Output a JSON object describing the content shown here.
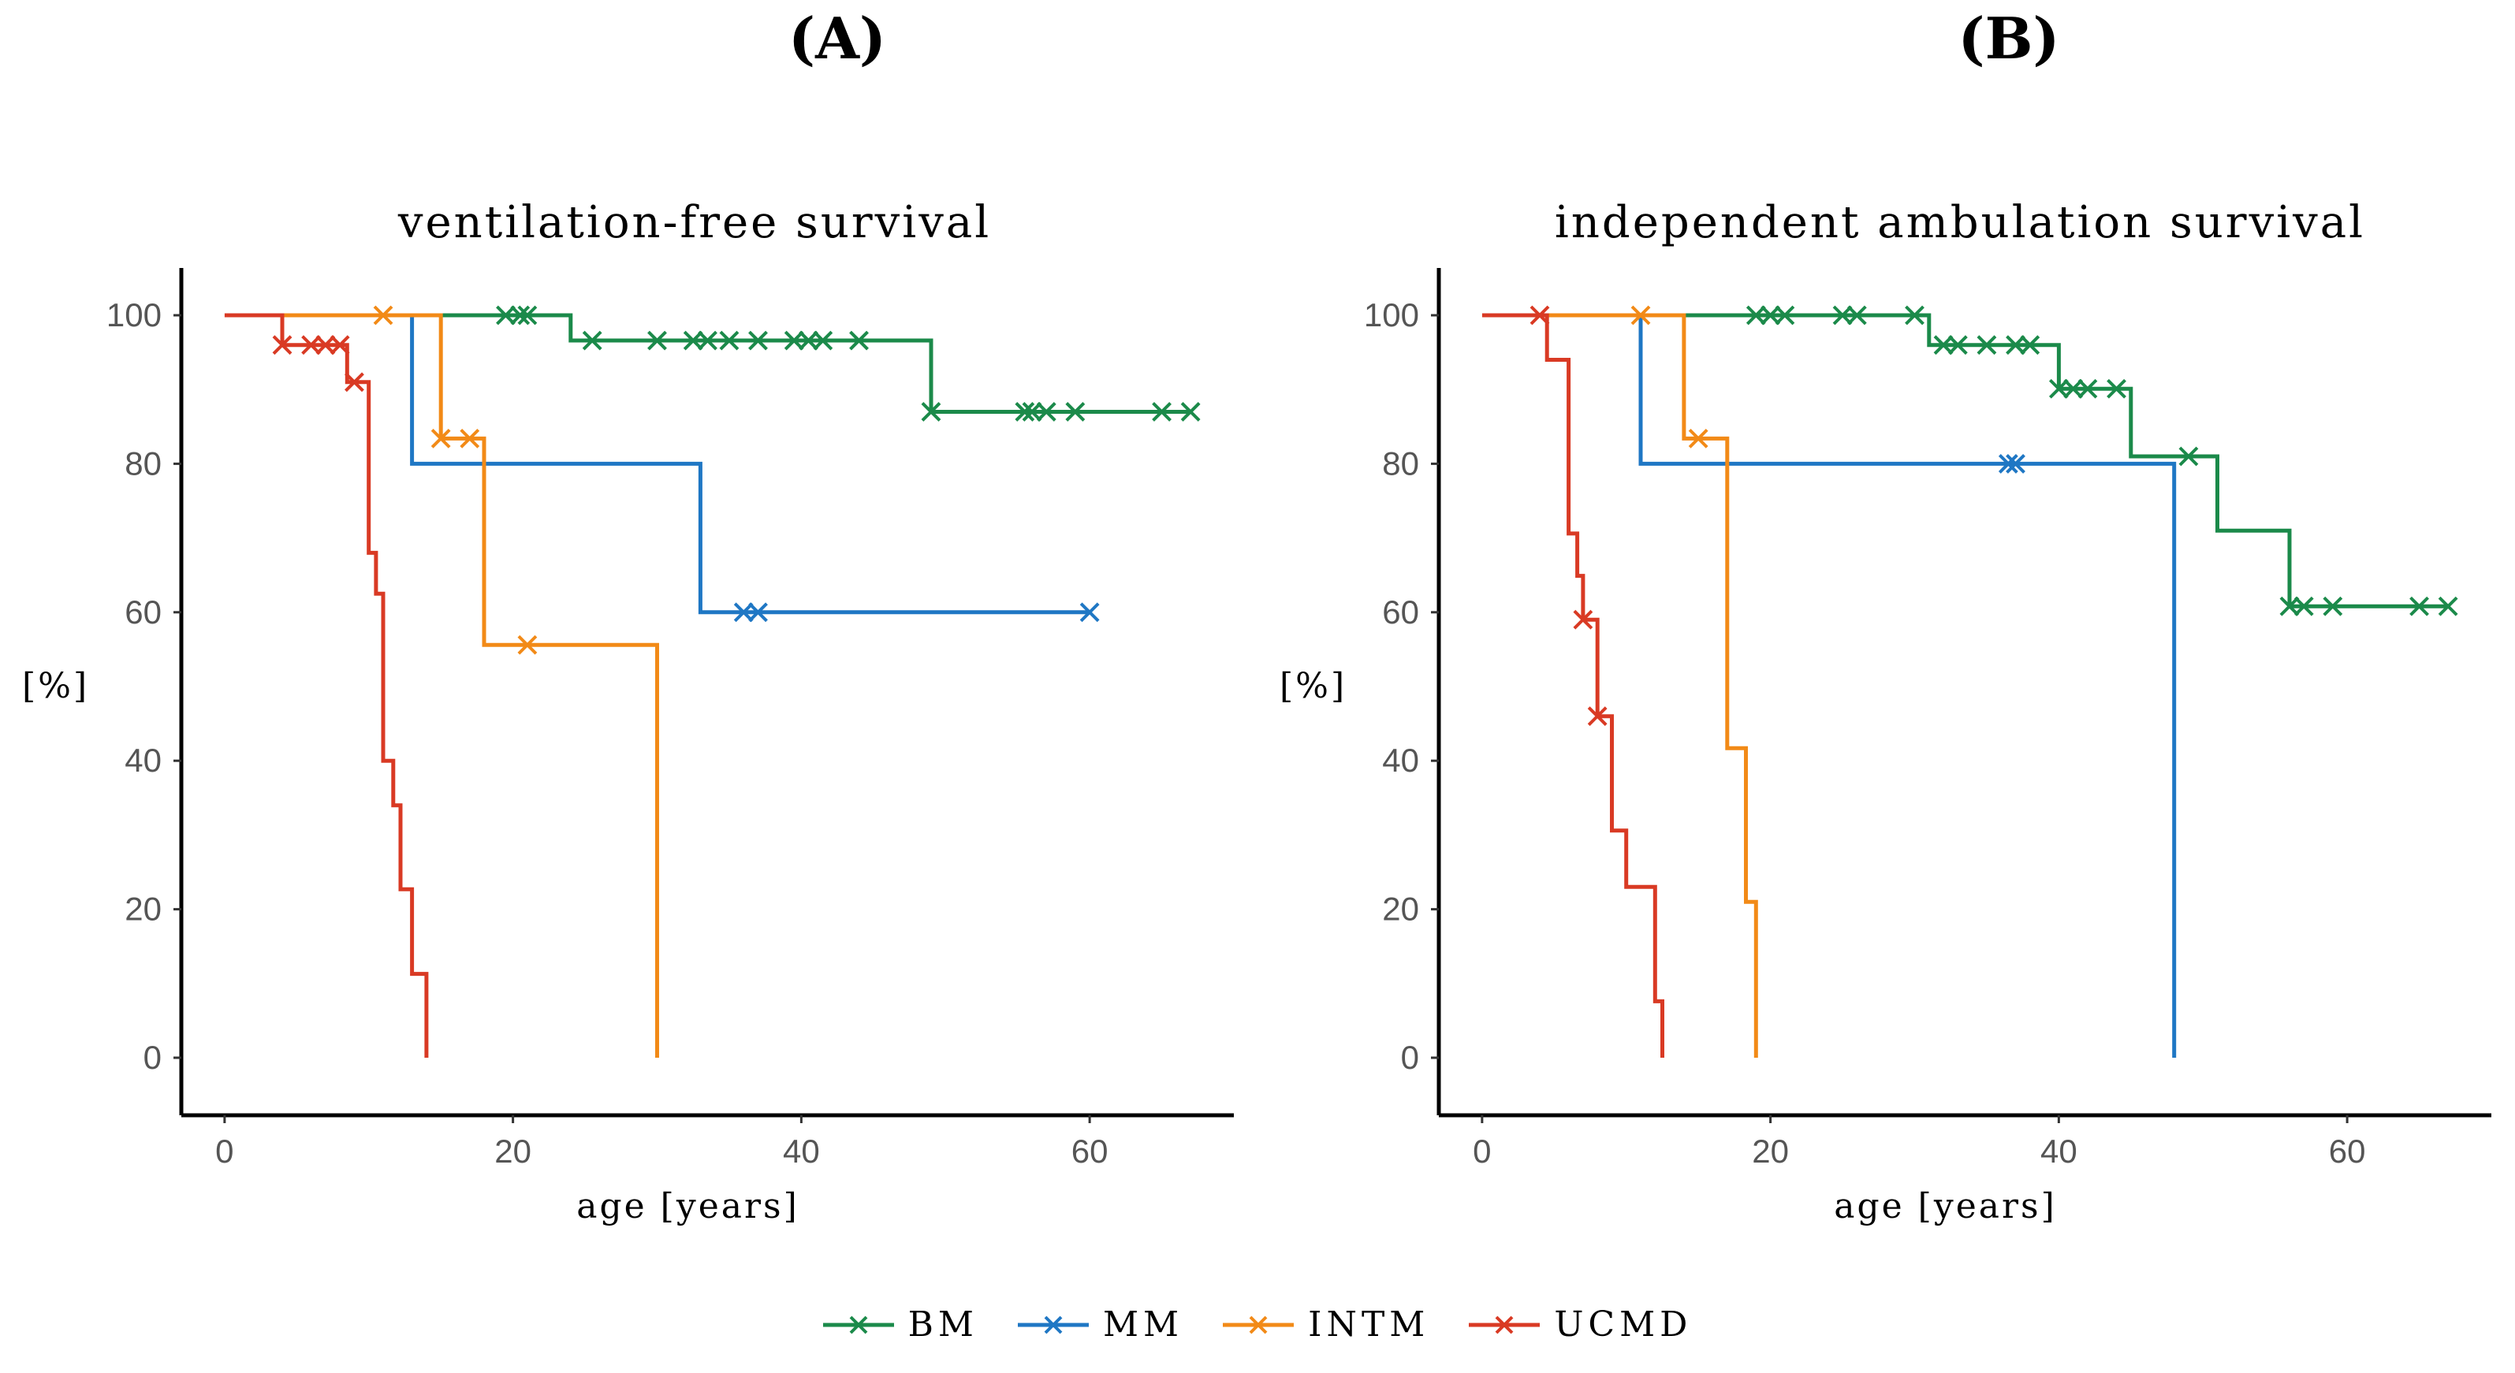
{
  "panels": {
    "a_label": "(A)",
    "b_label": "(B)"
  },
  "legend": [
    {
      "name": "BM",
      "color": "#1b8a4a"
    },
    {
      "name": "MM",
      "color": "#1f77c4"
    },
    {
      "name": "INTM",
      "color": "#f28a17"
    },
    {
      "name": "UCMD",
      "color": "#d93a24"
    }
  ],
  "chart_data": [
    {
      "type": "line",
      "step": true,
      "title": "ventilation-free survival",
      "xlabel": "age [years]",
      "ylabel": "[%]",
      "xlim": [
        -3,
        70
      ],
      "ylim": [
        0,
        105
      ],
      "xticks": [
        0,
        20,
        40,
        60
      ],
      "yticks": [
        0,
        20,
        40,
        60,
        80,
        100
      ],
      "series": [
        {
          "name": "BM",
          "color": "#1b8a4a",
          "steps": [
            [
              13,
              100
            ],
            [
              24,
              100
            ],
            [
              24,
              96.6
            ],
            [
              49,
              96.6
            ],
            [
              49,
              87
            ],
            [
              67,
              87
            ]
          ],
          "censored": [
            [
              19.5,
              100
            ],
            [
              20.5,
              100
            ],
            [
              21,
              100
            ],
            [
              25.5,
              96.6
            ],
            [
              30,
              96.6
            ],
            [
              32.5,
              96.6
            ],
            [
              33.5,
              96.6
            ],
            [
              35,
              96.6
            ],
            [
              37,
              96.6
            ],
            [
              39.5,
              96.6
            ],
            [
              40.5,
              96.6
            ],
            [
              41.5,
              96.6
            ],
            [
              44,
              96.6
            ],
            [
              49,
              87
            ],
            [
              55.5,
              87
            ],
            [
              56,
              87
            ],
            [
              57,
              87
            ],
            [
              59,
              87
            ],
            [
              65,
              87
            ],
            [
              67,
              87
            ]
          ]
        },
        {
          "name": "MM",
          "color": "#1f77c4",
          "steps": [
            [
              13,
              100
            ],
            [
              13,
              80
            ],
            [
              33,
              80
            ],
            [
              33,
              60
            ],
            [
              60,
              60
            ]
          ],
          "censored": [
            [
              36,
              60
            ],
            [
              37,
              60
            ],
            [
              60,
              60
            ]
          ]
        },
        {
          "name": "INTM",
          "color": "#f28a17",
          "steps": [
            [
              4,
              100
            ],
            [
              15,
              100
            ],
            [
              15,
              83.4
            ],
            [
              18,
              83.4
            ],
            [
              18,
              55.6
            ],
            [
              30,
              55.6
            ],
            [
              30,
              0
            ]
          ],
          "censored": [
            [
              11,
              100
            ],
            [
              15,
              83.4
            ],
            [
              17,
              83.4
            ],
            [
              21,
              55.6
            ]
          ]
        },
        {
          "name": "UCMD",
          "color": "#d93a24",
          "steps": [
            [
              0,
              100
            ],
            [
              4,
              100
            ],
            [
              4,
              96
            ],
            [
              8.5,
              96
            ],
            [
              8.5,
              91
            ],
            [
              10,
              91
            ],
            [
              10,
              68
            ],
            [
              10.5,
              68
            ],
            [
              10.5,
              62.5
            ],
            [
              11,
              62.5
            ],
            [
              11,
              40
            ],
            [
              11.7,
              40
            ],
            [
              11.7,
              34
            ],
            [
              12.2,
              34
            ],
            [
              12.2,
              22.7
            ],
            [
              13,
              22.7
            ],
            [
              13,
              11.3
            ],
            [
              14,
              11.3
            ],
            [
              14,
              0
            ]
          ],
          "censored": [
            [
              4,
              96
            ],
            [
              6,
              96
            ],
            [
              7,
              96
            ],
            [
              8,
              96
            ],
            [
              9,
              91
            ]
          ]
        }
      ]
    },
    {
      "type": "line",
      "step": true,
      "title": "independent ambulation survival",
      "xlabel": "age [years]",
      "ylabel": "[%]",
      "xlim": [
        -3,
        70
      ],
      "ylim": [
        0,
        105
      ],
      "xticks": [
        0,
        20,
        40,
        60
      ],
      "yticks": [
        0,
        20,
        40,
        60,
        80,
        100
      ],
      "series": [
        {
          "name": "BM",
          "color": "#1b8a4a",
          "steps": [
            [
              14,
              100
            ],
            [
              31,
              100
            ],
            [
              31,
              96
            ],
            [
              40,
              96
            ],
            [
              40,
              90.1
            ],
            [
              45,
              90.1
            ],
            [
              45,
              81
            ],
            [
              51,
              81
            ],
            [
              51,
              71
            ],
            [
              56,
              71
            ],
            [
              56,
              60.8
            ],
            [
              67,
              60.8
            ]
          ],
          "censored": [
            [
              19,
              100
            ],
            [
              20,
              100
            ],
            [
              21,
              100
            ],
            [
              25,
              100
            ],
            [
              26,
              100
            ],
            [
              30,
              100
            ],
            [
              32,
              96
            ],
            [
              33,
              96
            ],
            [
              35,
              96
            ],
            [
              37,
              96
            ],
            [
              38,
              96
            ],
            [
              40,
              90.1
            ],
            [
              41,
              90.1
            ],
            [
              42,
              90.1
            ],
            [
              44,
              90.1
            ],
            [
              49,
              81
            ],
            [
              56,
              60.8
            ],
            [
              57,
              60.8
            ],
            [
              59,
              60.8
            ],
            [
              65,
              60.8
            ],
            [
              67,
              60.8
            ]
          ]
        },
        {
          "name": "MM",
          "color": "#1f77c4",
          "steps": [
            [
              11,
              100
            ],
            [
              11,
              80
            ],
            [
              48,
              80
            ],
            [
              48,
              0
            ]
          ],
          "censored": [
            [
              36.5,
              80
            ],
            [
              37,
              80
            ]
          ]
        },
        {
          "name": "INTM",
          "color": "#f28a17",
          "steps": [
            [
              4,
              100
            ],
            [
              14,
              100
            ],
            [
              14,
              83.4
            ],
            [
              17,
              83.4
            ],
            [
              17,
              41.7
            ],
            [
              18.3,
              41.7
            ],
            [
              18.3,
              21
            ],
            [
              19,
              21
            ],
            [
              19,
              0
            ]
          ],
          "censored": [
            [
              11,
              100
            ],
            [
              15,
              83.4
            ]
          ]
        },
        {
          "name": "UCMD",
          "color": "#d93a24",
          "steps": [
            [
              0,
              100
            ],
            [
              4.5,
              100
            ],
            [
              4.5,
              94
            ],
            [
              6,
              94
            ],
            [
              6,
              70.6
            ],
            [
              6.6,
              70.6
            ],
            [
              6.6,
              64.9
            ],
            [
              7,
              64.9
            ],
            [
              7,
              59
            ],
            [
              8,
              59
            ],
            [
              8,
              46
            ],
            [
              9,
              46
            ],
            [
              9,
              30.6
            ],
            [
              10,
              30.6
            ],
            [
              10,
              23
            ],
            [
              12,
              23
            ],
            [
              12,
              7.6
            ],
            [
              12.5,
              7.6
            ],
            [
              12.5,
              0
            ]
          ],
          "censored": [
            [
              4,
              100
            ],
            [
              7,
              59
            ],
            [
              8,
              46
            ]
          ]
        }
      ]
    }
  ]
}
